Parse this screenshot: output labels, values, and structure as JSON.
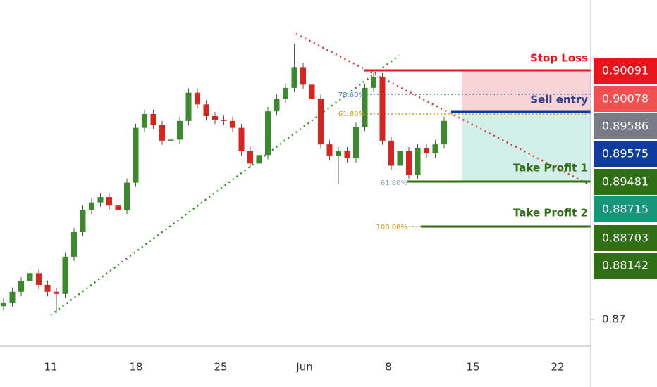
{
  "chart_data": {
    "type": "candlestick",
    "ylim": [
      0.865,
      0.93
    ],
    "yticks": [
      0.87
    ],
    "up_color": "#3b8a2c",
    "down_color": "#d9241e",
    "xtick_labels": [
      "11",
      "18",
      "25",
      "Jun",
      "8",
      "15",
      "22"
    ],
    "candles": [
      [
        0.8725,
        0.874,
        0.8717,
        0.8732
      ],
      [
        0.8732,
        0.876,
        0.8724,
        0.8752
      ],
      [
        0.8752,
        0.878,
        0.8744,
        0.8772
      ],
      [
        0.8772,
        0.8795,
        0.8764,
        0.8787
      ],
      [
        0.8787,
        0.8795,
        0.8757,
        0.8765
      ],
      [
        0.8765,
        0.8773,
        0.8744,
        0.8752
      ],
      [
        0.8752,
        0.876,
        0.8712,
        0.8748
      ],
      [
        0.8748,
        0.8826,
        0.874,
        0.8818
      ],
      [
        0.8818,
        0.8872,
        0.881,
        0.8864
      ],
      [
        0.8864,
        0.8914,
        0.8856,
        0.8906
      ],
      [
        0.8906,
        0.8928,
        0.8898,
        0.892
      ],
      [
        0.892,
        0.8938,
        0.8912,
        0.893
      ],
      [
        0.893,
        0.8938,
        0.8906,
        0.8914
      ],
      [
        0.8914,
        0.8922,
        0.8898,
        0.8906
      ],
      [
        0.8906,
        0.8965,
        0.8898,
        0.8957
      ],
      [
        0.8957,
        0.9068,
        0.8949,
        0.906
      ],
      [
        0.906,
        0.9094,
        0.9052,
        0.9086
      ],
      [
        0.9086,
        0.9094,
        0.9057,
        0.9065
      ],
      [
        0.9065,
        0.9073,
        0.9028,
        0.9036
      ],
      [
        0.9036,
        0.9046,
        0.9028,
        0.9038
      ],
      [
        0.9038,
        0.9081,
        0.903,
        0.9073
      ],
      [
        0.9073,
        0.9134,
        0.9065,
        0.9126
      ],
      [
        0.9126,
        0.9134,
        0.9096,
        0.9104
      ],
      [
        0.9104,
        0.9112,
        0.9074,
        0.9082
      ],
      [
        0.9082,
        0.909,
        0.9067,
        0.9075
      ],
      [
        0.9075,
        0.9083,
        0.9065,
        0.9073
      ],
      [
        0.9073,
        0.9081,
        0.9052,
        0.906
      ],
      [
        0.906,
        0.9068,
        0.9008,
        0.9016
      ],
      [
        0.9016,
        0.9024,
        0.8985,
        0.8993
      ],
      [
        0.8993,
        0.9017,
        0.8985,
        0.9009
      ],
      [
        0.9009,
        0.9099,
        0.9001,
        0.9091
      ],
      [
        0.9091,
        0.9123,
        0.9083,
        0.9115
      ],
      [
        0.9115,
        0.9143,
        0.9107,
        0.9135
      ],
      [
        0.9135,
        0.9218,
        0.9127,
        0.9174
      ],
      [
        0.9174,
        0.9182,
        0.9133,
        0.9141
      ],
      [
        0.9141,
        0.9149,
        0.9107,
        0.9115
      ],
      [
        0.9115,
        0.9123,
        0.9021,
        0.9029
      ],
      [
        0.9029,
        0.9037,
        0.8999,
        0.9007
      ],
      [
        0.9007,
        0.9024,
        0.8954,
        0.9016
      ],
      [
        0.9016,
        0.9024,
        0.8995,
        0.9003
      ],
      [
        0.9003,
        0.907,
        0.8995,
        0.9062
      ],
      [
        0.9062,
        0.9143,
        0.9054,
        0.9135
      ],
      [
        0.9135,
        0.9163,
        0.9127,
        0.9155
      ],
      [
        0.9155,
        0.9163,
        0.9028,
        0.9036
      ],
      [
        0.9036,
        0.9044,
        0.8981,
        0.8989
      ],
      [
        0.8989,
        0.9024,
        0.8981,
        0.9016
      ],
      [
        0.9016,
        0.9024,
        0.8964,
        0.8972
      ],
      [
        0.8972,
        0.903,
        0.8964,
        0.9022
      ],
      [
        0.9022,
        0.903,
        0.9004,
        0.9012
      ],
      [
        0.9012,
        0.9037,
        0.9004,
        0.9029
      ],
      [
        0.9029,
        0.9081,
        0.9021,
        0.9073
      ]
    ],
    "levels": [
      "Stop Loss",
      "Sell entry",
      "Take Profit 1",
      "Take Profit 2"
    ],
    "fib_labels": [
      "78.60%",
      "61.80%",
      "61.80%",
      "100.00%"
    ],
    "price_tags": [
      {
        "text": "0.90091",
        "color": "#e8141b"
      },
      {
        "text": "0.90078",
        "color": "#f0504f"
      },
      {
        "text": "0.89586",
        "color": "#787b86"
      },
      {
        "text": "0.89575",
        "color": "#0d3c9e"
      },
      {
        "text": "0.89481",
        "color": "#2f6e15"
      },
      {
        "text": "0.88715",
        "color": "#16977a"
      },
      {
        "text": "0.88703",
        "color": "#2f6e15"
      },
      {
        "text": "0.88142",
        "color": "#2f6e15"
      }
    ]
  }
}
